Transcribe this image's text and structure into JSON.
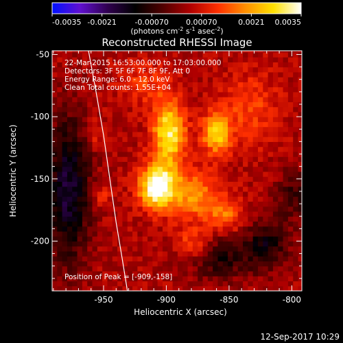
{
  "colorbar": {
    "ticks": [
      "-0.0035",
      "-0.0021",
      "-0.00070",
      "0.00070",
      "0.0021",
      "0.0035"
    ],
    "unit_label": "(photons cm",
    "unit_sup1": "-2",
    "unit_mid": " s",
    "unit_sup2": "-1",
    "unit_end": " asec",
    "unit_sup3": "-2",
    "unit_close": ")",
    "range": [
      -0.0035,
      0.0035
    ],
    "colors": [
      "#0010ff",
      "#6010d0",
      "#300050",
      "#000000",
      "#500000",
      "#b00000",
      "#ff3000",
      "#ff9000",
      "#ffe000",
      "#ffffff"
    ]
  },
  "footer": {
    "timestamp": "12-Sep-2017 10:29"
  },
  "chart_data": {
    "type": "heatmap",
    "title": "Reconstructed RHESSI Image",
    "xlabel": "Heliocentric X (arcsec)",
    "ylabel": "Heliocentric Y (arcsec)",
    "xlim": [
      -991,
      -792
    ],
    "ylim": [
      -240,
      -47
    ],
    "xticks": [
      -950,
      -900,
      -850,
      -800
    ],
    "yticks": [
      -50,
      -100,
      -150,
      -200
    ],
    "xtick_labels": [
      "-950",
      "-900",
      "-850",
      "-800"
    ],
    "ytick_labels": [
      "-50",
      "-100",
      "-150",
      "-200"
    ],
    "info_lines": [
      "22-Mar-2015 16:53:00.000 to 17:03:00.000",
      "Detectors: 3F 5F 6F 7F 8F 9F, Att 0",
      "Energy Range: 6.0 - 12.0 keV",
      "Clean    Total counts: 1.55E+04"
    ],
    "peak_label": "Position of Peak = [-909,-158]",
    "peak": [
      -909,
      -158
    ],
    "limb_curve": [
      [
        -962,
        -47
      ],
      [
        -956,
        -80
      ],
      [
        -950,
        -115
      ],
      [
        -945,
        -150
      ],
      [
        -940,
        -185
      ],
      [
        -935,
        -215
      ],
      [
        -931,
        -240
      ]
    ],
    "grid": false,
    "sources": [
      {
        "x": -909,
        "y": -158,
        "sx": 10,
        "sy": 12,
        "amp": 0.0035
      },
      {
        "x": -900,
        "y": -115,
        "sx": 9,
        "sy": 18,
        "amp": 0.0028
      },
      {
        "x": -862,
        "y": -115,
        "sx": 8,
        "sy": 12,
        "amp": 0.0022
      },
      {
        "x": -880,
        "y": -165,
        "sx": 14,
        "sy": 14,
        "amp": 0.0016
      },
      {
        "x": -855,
        "y": -180,
        "sx": 10,
        "sy": 10,
        "amp": 0.0012
      },
      {
        "x": -880,
        "y": -205,
        "sx": 9,
        "sy": 9,
        "amp": 0.0012
      },
      {
        "x": -835,
        "y": -95,
        "sx": 16,
        "sy": 20,
        "amp": 0.0009
      },
      {
        "x": -920,
        "y": -75,
        "sx": 14,
        "sy": 12,
        "amp": 0.0008
      },
      {
        "x": -960,
        "y": -115,
        "sx": 6,
        "sy": 8,
        "amp": 0.0007
      },
      {
        "x": -955,
        "y": -165,
        "sx": 6,
        "sy": 8,
        "amp": 0.0007
      }
    ],
    "negative_sources": [
      {
        "x": -980,
        "y": -160,
        "sx": 12,
        "sy": 40,
        "amp": -0.002
      },
      {
        "x": -860,
        "y": -215,
        "sx": 18,
        "sy": 12,
        "amp": -0.0012
      },
      {
        "x": -822,
        "y": -205,
        "sx": 12,
        "sy": 14,
        "amp": -0.0014
      },
      {
        "x": -800,
        "y": -165,
        "sx": 10,
        "sy": 14,
        "amp": -0.001
      }
    ]
  }
}
